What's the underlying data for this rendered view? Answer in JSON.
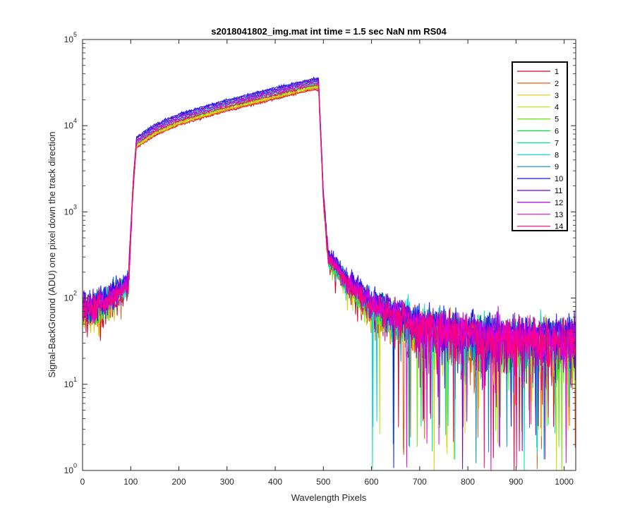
{
  "chart_data": {
    "type": "line",
    "title": "s2018041802_img.mat int time = 1.5 sec  NaN nm RS04",
    "xlabel": "Wavelength Pixels",
    "ylabel": "Signal-BackGround (ADU) one pixel down the track direction",
    "xlim": [
      0,
      1024
    ],
    "ylim": [
      1,
      100000
    ],
    "yscale": "log",
    "grid": false,
    "legend_position": "top-right",
    "x_ticks": [
      "0",
      "100",
      "200",
      "300",
      "400",
      "500",
      "600",
      "700",
      "800",
      "900",
      "1000"
    ],
    "x_tick_values": [
      0,
      100,
      200,
      300,
      400,
      500,
      600,
      700,
      800,
      900,
      1000
    ],
    "y_tick_values": [
      1,
      10,
      100,
      1000,
      10000,
      100000
    ],
    "y_tick_base": "10",
    "y_tick_exponents": [
      "0",
      "1",
      "2",
      "3",
      "4",
      "5"
    ],
    "profile_x": [
      0,
      50,
      95,
      105,
      112,
      150,
      200,
      300,
      400,
      480,
      490,
      500,
      510,
      550,
      600,
      700,
      800,
      900,
      1024
    ],
    "profile_y": [
      75,
      90,
      150,
      2000,
      6500,
      9000,
      12000,
      17500,
      24000,
      31000,
      31000,
      1500,
      300,
      150,
      85,
      48,
      37,
      33,
      32
    ],
    "series": [
      {
        "name": "1",
        "color": "#d9001f",
        "scale": 0.85
      },
      {
        "name": "2",
        "color": "#ee5a12",
        "scale": 0.87
      },
      {
        "name": "3",
        "color": "#e8c80c",
        "scale": 0.89
      },
      {
        "name": "4",
        "color": "#c6e000",
        "scale": 0.91
      },
      {
        "name": "5",
        "color": "#63ed00",
        "scale": 0.93
      },
      {
        "name": "6",
        "color": "#00ea3f",
        "scale": 0.97
      },
      {
        "name": "7",
        "color": "#00e5a0",
        "scale": 1.0
      },
      {
        "name": "8",
        "color": "#00d9d0",
        "scale": 1.03
      },
      {
        "name": "9",
        "color": "#008fc0",
        "scale": 1.08
      },
      {
        "name": "10",
        "color": "#0d1ede",
        "scale": 1.14
      },
      {
        "name": "11",
        "color": "#6a00e6",
        "scale": 1.11
      },
      {
        "name": "12",
        "color": "#a900dd",
        "scale": 1.05
      },
      {
        "name": "13",
        "color": "#e500df",
        "scale": 1.0
      },
      {
        "name": "14",
        "color": "#ff0077",
        "scale": 0.95
      }
    ]
  }
}
